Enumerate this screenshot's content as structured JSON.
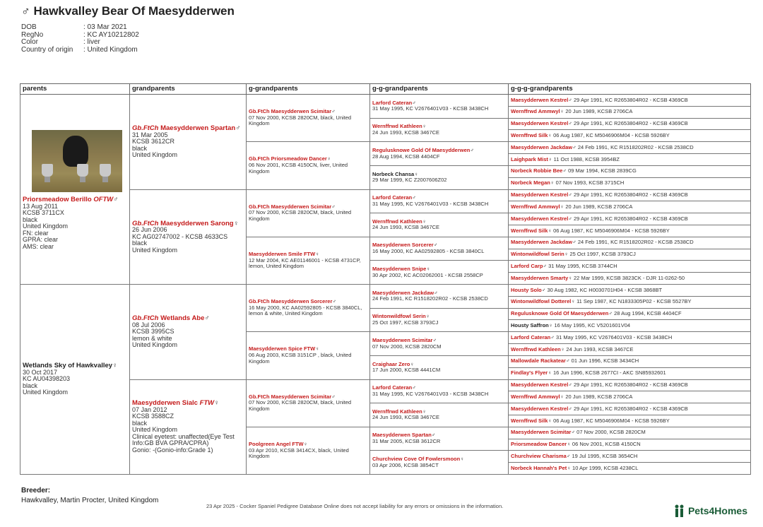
{
  "header": {
    "title": "♂ Hawkvalley Bear Of Maesydderwen"
  },
  "info": [
    {
      "label": "DOB",
      "value": ": 03 Mar 2021"
    },
    {
      "label": "RegNo",
      "value": ": KC AY10212802"
    },
    {
      "label": "Color",
      "value": ": liver"
    },
    {
      "label": "Country of origin",
      "value": ": United Kingdom"
    }
  ],
  "columns": [
    "parents",
    "grandparents",
    "g-grandparents",
    "g-g-grandparents",
    "g-g-g-grandparents"
  ],
  "parents": [
    {
      "prefix": "Priorsmeadow Berillo ",
      "title": "OFTW",
      "sym": "♂",
      "details": [
        "13 Aug 2011",
        "KCSB 3711CX",
        "black",
        "United Kingdom",
        "FN: clear",
        "GPRA: clear",
        "AMS: clear"
      ]
    },
    {
      "prefix": "Wetlands Sky of Hawkvalley",
      "title": "",
      "sym": "♀",
      "details": [
        "30 Oct 2017",
        "KC AU04398203",
        "black",
        "United Kingdom"
      ]
    }
  ],
  "grandparents": [
    {
      "prefix": "Gb.FtCh ",
      "name": "Maesydderwen Spartan",
      "sym": "♂",
      "details": [
        "31 Mar 2005",
        "KCSB 3612CR",
        "black",
        "United Kingdom"
      ]
    },
    {
      "prefix": "Gb.FtCh ",
      "name": "Maesydderwen Sarong",
      "sym": "♀",
      "details": [
        "26 Jun 2006",
        "KC AG02747002 - KCSB 4633CS",
        "black",
        "United Kingdom"
      ]
    },
    {
      "prefix": "Gb.FtCh ",
      "name": "Wetlands Abe",
      "sym": "♂",
      "details": [
        "08 Jul 2006",
        "KCSB 3995CS",
        "lemon & white",
        "United Kingdom"
      ]
    },
    {
      "prefix": "",
      "name": "Maesydderwen Sialc ",
      "title": "FTW",
      "sym": "♀",
      "details": [
        "07 Jan 2012",
        "KCSB 3588CZ",
        "black",
        "United Kingdom",
        "Clinical eyetest: unaffected(Eye Test",
        "Info:GB BVA GPRA/CPRA)",
        "Gonio: -(Gonio-info:Grade 1)"
      ]
    }
  ],
  "ggrandparents": [
    {
      "name": "Gb.FtCh Maesydderwen Scimitar",
      "sym": "♂",
      "detail": "07 Nov 2000, KCSB 2820CM, black, United Kingdom"
    },
    {
      "name": "Gb.FtCh Priorsmeadow Dancer",
      "sym": "♀",
      "detail": "06 Nov 2001, KCSB 4150CN, liver, United Kingdom"
    },
    {
      "name": "Gb.FtCh Maesydderwen Scimitar",
      "sym": "♂",
      "detail": "07 Nov 2000, KCSB 2820CM, black, United Kingdom"
    },
    {
      "name": "Maesydderwen Smile FTW",
      "sym": "♀",
      "detail": "12 Mar 2004, KC AE01146001 - KCSB 4731CP, lemon, United Kingdom"
    },
    {
      "name": "Gb.FtCh Maesydderwen Sorcerer",
      "sym": "♂",
      "detail": "16 May 2000, KC AA02592805 - KCSB 3840CL, lemon & white, United Kingdom"
    },
    {
      "name": "Maesydderwen Spice FTW",
      "sym": "♀",
      "detail": "06 Aug 2003, KCSB 3151CP , black, United Kingdom"
    },
    {
      "name": "Gb.FtCh Maesydderwen Scimitar",
      "sym": "♂",
      "detail": "07 Nov 2000, KCSB 2820CM, black, United Kingdom"
    },
    {
      "name": "Poolgreen Angel FTW",
      "sym": "♀",
      "detail": "03 Apr 2010, KCSB 3414CX, black, United Kingdom"
    }
  ],
  "gggrandparents": [
    {
      "name": "Larford Cateran",
      "sym": "♂",
      "detail": "31 May 1995, KC V2676401V03 - KCSB 3438CH",
      "black": false
    },
    {
      "name": "Wernffrwd Kathleen",
      "sym": "♀",
      "detail": "24 Jun 1993, KCSB 3467CE",
      "black": false
    },
    {
      "name": "Regulusknowe Gold Of Maesydderwen",
      "sym": "♂",
      "detail": "28 Aug 1994, KCSB 4404CF",
      "black": false
    },
    {
      "name": "Norbeck Chansa",
      "sym": "♀",
      "detail": "29 Mar 1999, KC Z2007606Z02",
      "black": true
    },
    {
      "name": "Larford Cateran",
      "sym": "♂",
      "detail": "31 May 1995, KC V2676401V03 - KCSB 3438CH",
      "black": false
    },
    {
      "name": "Wernffrwd Kathleen",
      "sym": "♀",
      "detail": "24 Jun 1993, KCSB 3467CE",
      "black": false
    },
    {
      "name": "Maesydderwen Sorcerer",
      "sym": "♂",
      "detail": "16 May 2000, KC AA02592805 - KCSB 3840CL",
      "black": false
    },
    {
      "name": "Maesydderwen Snipe",
      "sym": "♀",
      "detail": "30 Apr 2002, KC AC02062001 - KCSB 2558CP",
      "black": false
    },
    {
      "name": "Maesydderwen Jackdaw",
      "sym": "♂",
      "detail": "24 Feb 1991, KC R1518202R02 - KCSB 2538CD",
      "black": false
    },
    {
      "name": "Wintonwildfowl Serin",
      "sym": "♀",
      "detail": "25 Oct 1997, KCSB 3793CJ",
      "black": false
    },
    {
      "name": "Maesydderwen Scimitar",
      "sym": "♂",
      "detail": "07 Nov 2000, KCSB 2820CM",
      "black": false
    },
    {
      "name": "Craighaar Zero",
      "sym": "♀",
      "detail": "17 Jun 2000, KCSB 4441CM",
      "black": false
    },
    {
      "name": "Larford Cateran",
      "sym": "♂",
      "detail": "31 May 1995, KC V2676401V03 - KCSB 3438CH",
      "black": false
    },
    {
      "name": "Wernffrwd Kathleen",
      "sym": "♀",
      "detail": "24 Jun 1993, KCSB 3467CE",
      "black": false
    },
    {
      "name": "Maesydderwen Spartan",
      "sym": "♂",
      "detail": "31 Mar 2005, KCSB 3612CR",
      "black": false
    },
    {
      "name": "Churchview Cove Of Fowlersmoon",
      "sym": "♀",
      "detail": "03 Apr 2006, KCSB 3854CT",
      "black": false
    }
  ],
  "ggggrandparents": [
    {
      "name": "Maesydderwen Kestrel",
      "sym": "♂",
      "detail": "29 Apr 1991, KC R2653804R02 - KCSB 4369CB",
      "black": false
    },
    {
      "name": "Wernffrwd Ammwyl",
      "sym": "♀",
      "detail": "20 Jun 1989, KCSB 2706CA",
      "black": false
    },
    {
      "name": "Maesydderwen Kestrel",
      "sym": "♂",
      "detail": "29 Apr 1991, KC R2653804R02 - KCSB 4369CB",
      "black": false
    },
    {
      "name": "Wernffrwd Silk",
      "sym": "♀",
      "detail": "06 Aug 1987, KC M5046906M04 - KCSB 5926BY",
      "black": false
    },
    {
      "name": "Maesydderwen Jackdaw",
      "sym": "♂",
      "detail": "24 Feb 1991, KC R1518202R02 - KCSB 2538CD",
      "black": false
    },
    {
      "name": "Laighpark Mist",
      "sym": "♀",
      "detail": "11 Oct 1988, KCSB 3954BZ",
      "black": false
    },
    {
      "name": "Norbeck Robbie Bee",
      "sym": "♂",
      "detail": "09 Mar 1994, KCSB 2839CG",
      "black": false
    },
    {
      "name": "Norbeck Megan",
      "sym": "♀",
      "detail": "07 Nov 1993, KCSB 3715CH",
      "black": false
    },
    {
      "name": "Maesydderwen Kestrel",
      "sym": "♂",
      "detail": "29 Apr 1991, KC R2653804R02 - KCSB 4369CB",
      "black": false
    },
    {
      "name": "Wernffrwd Ammwyl",
      "sym": "♀",
      "detail": "20 Jun 1989, KCSB 2706CA",
      "black": false
    },
    {
      "name": "Maesydderwen Kestrel",
      "sym": "♂",
      "detail": "29 Apr 1991, KC R2653804R02 - KCSB 4369CB",
      "black": false
    },
    {
      "name": "Wernffrwd Silk",
      "sym": "♀",
      "detail": "06 Aug 1987, KC M5046906M04 - KCSB 5926BY",
      "black": false
    },
    {
      "name": "Maesydderwen Jackdaw",
      "sym": "♂",
      "detail": "24 Feb 1991, KC R1518202R02 - KCSB 2538CD",
      "black": false
    },
    {
      "name": "Wintonwildfowl Serin",
      "sym": "♀",
      "detail": "25 Oct 1997, KCSB 3793CJ",
      "black": false
    },
    {
      "name": "Larford Carp",
      "sym": "♂",
      "detail": "31 May 1995, KCSB 3744CH",
      "black": false
    },
    {
      "name": "Maesydderwen Smarty",
      "sym": "♀",
      "detail": "22 Mar 1999, KCSB 3823CK - DJR 11-0262-50",
      "black": false
    },
    {
      "name": "Housty Solo",
      "sym": "♂",
      "detail": "30 Aug 1982, KC H0030701H04 - KCSB 3868BT",
      "black": false
    },
    {
      "name": "Wintonwildfowl Dotterel",
      "sym": "♀",
      "detail": "11 Sep 1987, KC N1833305P02 - KCSB 5527BY",
      "black": false
    },
    {
      "name": "Regulusknowe Gold Of Maesydderwen",
      "sym": "♂",
      "detail": "28 Aug 1994, KCSB 4404CF",
      "black": false
    },
    {
      "name": "Housty Saffron",
      "sym": "♀",
      "detail": "16 May 1995, KC V5201601V04",
      "black": true
    },
    {
      "name": "Larford Cateran",
      "sym": "♂",
      "detail": "31 May 1995, KC V2676401V03 - KCSB 3438CH",
      "black": false
    },
    {
      "name": "Wernffrwd Kathleen",
      "sym": "♀",
      "detail": "24 Jun 1993, KCSB 3467CE",
      "black": false
    },
    {
      "name": "Mallowdale Rackatear",
      "sym": "♂",
      "detail": "01 Jun 1996, KCSB 3434CH",
      "black": false
    },
    {
      "name": "Findlay's Flyer",
      "sym": "♀",
      "detail": "16 Jun 1996, KCSB 2677CI - AKC SN85932601",
      "black": false
    },
    {
      "name": "Maesydderwen Kestrel",
      "sym": "♂",
      "detail": "29 Apr 1991, KC R2653804R02 - KCSB 4369CB",
      "black": false
    },
    {
      "name": "Wernffrwd Ammwyl",
      "sym": "♀",
      "detail": "20 Jun 1989, KCSB 2706CA",
      "black": false
    },
    {
      "name": "Maesydderwen Kestrel",
      "sym": "♂",
      "detail": "29 Apr 1991, KC R2653804R02 - KCSB 4369CB",
      "black": false
    },
    {
      "name": "Wernffrwd Silk",
      "sym": "♀",
      "detail": "06 Aug 1987, KC M5046906M04 - KCSB 5926BY",
      "black": false
    },
    {
      "name": "Maesydderwen Scimitar",
      "sym": "♂",
      "detail": "07 Nov 2000, KCSB 2820CM",
      "black": false
    },
    {
      "name": "Priorsmeadow Dancer",
      "sym": "♀",
      "detail": "06 Nov 2001, KCSB 4150CN",
      "black": false
    },
    {
      "name": "Churchview Charisma",
      "sym": "♂",
      "detail": "19 Jul 1995, KCSB 3654CH",
      "black": false
    },
    {
      "name": "Norbeck Hannah's Pet",
      "sym": "♀",
      "detail": "10 Apr 1999, KCSB 4238CL",
      "black": false
    }
  ],
  "breeder": {
    "label": "Breeder:",
    "value": "Hawkvalley, Martin Procter, United Kingdom"
  },
  "footer": {
    "note": "23 Apr 2025 - Cocker Spaniel Pedigree Database Online does not accept liability for any errors or omissions in the information.",
    "brand": "Pets4Homes",
    "brand_icon": "paw-logo-icon"
  },
  "colors": {
    "name_red": "#c41a1a",
    "brand_green": "#1a5c37"
  }
}
